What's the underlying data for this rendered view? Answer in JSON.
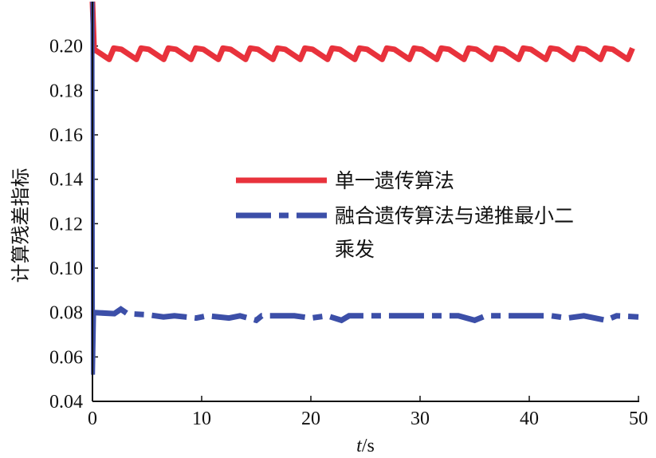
{
  "chart_data": {
    "type": "line",
    "title": "",
    "xlabel_var": "t",
    "xlabel_unit": "/s",
    "ylabel": "计算残差指标",
    "xlim": [
      0,
      50
    ],
    "ylim": [
      0.04,
      0.22
    ],
    "xticks": [
      0,
      10,
      20,
      30,
      40,
      50
    ],
    "xtick_labels": [
      "0",
      "10",
      "20",
      "30",
      "40",
      "50"
    ],
    "yticks": [
      0.04,
      0.06,
      0.08,
      0.1,
      0.12,
      0.14,
      0.16,
      0.18,
      0.2
    ],
    "ytick_labels": [
      "0.04",
      "0.06",
      "0.08",
      "0.10",
      "0.12",
      "0.14",
      "0.16",
      "0.18",
      "0.20"
    ],
    "grid": false,
    "legend_position": "center-right",
    "series": [
      {
        "name": "单一遗传算法",
        "color": "#e8323c",
        "style": "solid",
        "initial": [
          [
            0,
            0.22
          ],
          [
            0.15,
            0.198
          ]
        ],
        "baseline": 0.1985,
        "dip": 0.0045,
        "period": 2.5,
        "x_start": 0.15,
        "x_end": 50
      },
      {
        "name": "融合遗传算法与递推最小二乘发",
        "color": "#3c4fa8",
        "style": "dashdot",
        "initial": [
          [
            0,
            0.22
          ],
          [
            0.05,
            0.052
          ],
          [
            0.15,
            0.08
          ]
        ],
        "points": [
          [
            0.15,
            0.08
          ],
          [
            2.0,
            0.0795
          ],
          [
            2.6,
            0.0815
          ],
          [
            3.2,
            0.0795
          ],
          [
            5.0,
            0.079
          ],
          [
            6.5,
            0.078
          ],
          [
            7.5,
            0.0785
          ],
          [
            9.5,
            0.0775
          ],
          [
            10.5,
            0.0785
          ],
          [
            12.5,
            0.0775
          ],
          [
            13.5,
            0.0785
          ],
          [
            15.0,
            0.0765
          ],
          [
            15.5,
            0.0785
          ],
          [
            17.5,
            0.0785
          ],
          [
            18.5,
            0.0785
          ],
          [
            20.0,
            0.0775
          ],
          [
            21.5,
            0.0785
          ],
          [
            22.8,
            0.0765
          ],
          [
            23.5,
            0.0785
          ],
          [
            25.5,
            0.0785
          ],
          [
            27.5,
            0.0785
          ],
          [
            29.5,
            0.0785
          ],
          [
            31.5,
            0.0785
          ],
          [
            33.5,
            0.0785
          ],
          [
            35.0,
            0.0765
          ],
          [
            36.0,
            0.0785
          ],
          [
            38.0,
            0.0785
          ],
          [
            40.0,
            0.0785
          ],
          [
            42.0,
            0.0785
          ],
          [
            43.5,
            0.0775
          ],
          [
            45.0,
            0.0785
          ],
          [
            47.0,
            0.0765
          ],
          [
            48.0,
            0.0785
          ],
          [
            50.0,
            0.078
          ]
        ]
      }
    ],
    "legend_entries": [
      {
        "line1": "单一遗传算法"
      },
      {
        "line1": "融合遗传算法与递推最小二",
        "line2": "乘发"
      }
    ]
  }
}
